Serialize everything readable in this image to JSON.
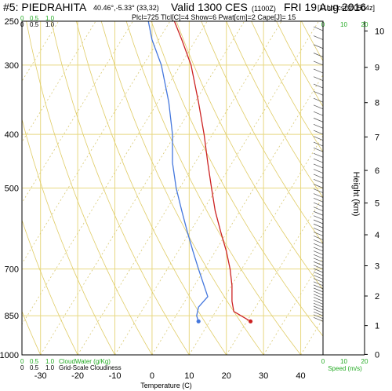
{
  "header": {
    "station": "#5: PIEDRAHITA",
    "coords": "40.46°,-5.33° (33,32)",
    "valid": "Valid 1300 CES",
    "zulu": "(1100Z)",
    "date": "FRI 19 Aug 2016",
    "forecast": "[11hrFcst@0504z]",
    "indices": "Plcl=725 Tlcl[C]=4 Show=6 Pwat[cm]=2 Cape[J]= 15"
  },
  "colors": {
    "temperature": "#cc2222",
    "dewpoint": "#4477dd",
    "grid": "#e8d882",
    "dry_adiabat": "#e0cc66",
    "cloudwater": "#22aa22",
    "wind": "#555555"
  },
  "labels": {
    "x_axis": "Temperature (C)",
    "y_axis_right": "Height (km)",
    "speed_axis": "Speed (m/s)",
    "cloudwater": "CloudWater (g/Kg)",
    "cloudiness": "Grid-Scale Cloudiness",
    "scale_0": "0",
    "scale_05": "0.5",
    "scale_1": "1.0"
  },
  "chart_data": {
    "type": "line",
    "xlabel": "Temperature (C)",
    "ylabel": "",
    "xlim": [
      -35,
      46
    ],
    "ylim": [
      1000,
      250
    ],
    "yscale": "log",
    "x_ticks": [
      -30,
      -20,
      -10,
      0,
      10,
      20,
      30,
      40
    ],
    "pressure_ticks": [
      250,
      300,
      400,
      500,
      700,
      850,
      1000
    ],
    "height_ticks": [
      0,
      1,
      2,
      3,
      4,
      5,
      6,
      7,
      8,
      9,
      10
    ],
    "speed_ticks": [
      0,
      10,
      20
    ],
    "series": [
      {
        "name": "temperature",
        "points": [
          [
            26.5,
            870
          ],
          [
            22,
            835
          ],
          [
            21.5,
            800
          ],
          [
            21.5,
            750
          ],
          [
            21,
            700
          ],
          [
            20,
            650
          ],
          [
            18.5,
            600
          ],
          [
            17,
            550
          ],
          [
            16,
            500
          ],
          [
            15,
            450
          ],
          [
            14,
            400
          ],
          [
            12.5,
            350
          ],
          [
            10.5,
            300
          ],
          [
            8,
            270
          ],
          [
            6,
            250
          ]
        ]
      },
      {
        "name": "dewpoint",
        "points": [
          [
            12.5,
            870
          ],
          [
            12,
            850
          ],
          [
            12.5,
            820
          ],
          [
            15,
            785
          ],
          [
            14,
            750
          ],
          [
            12.5,
            700
          ],
          [
            11,
            650
          ],
          [
            9.5,
            600
          ],
          [
            8,
            550
          ],
          [
            6.5,
            500
          ],
          [
            5.5,
            450
          ],
          [
            5.5,
            400
          ],
          [
            4.5,
            350
          ],
          [
            2.5,
            300
          ],
          [
            0,
            270
          ],
          [
            -1,
            250
          ]
        ]
      }
    ],
    "surface_markers": [
      [
        12.5,
        870
      ],
      [
        26.5,
        870
      ]
    ],
    "wind_barbs_pressure": [
      870,
      860,
      850,
      840,
      830,
      820,
      810,
      800,
      790,
      780,
      770,
      760,
      750,
      740,
      730,
      720,
      710,
      700,
      690,
      680,
      670,
      660,
      650,
      640,
      630,
      620,
      610,
      600,
      590,
      580,
      570,
      560,
      550,
      540,
      530,
      520,
      510,
      500,
      490,
      480,
      470,
      460,
      450,
      440,
      430,
      420,
      410,
      400,
      390,
      380,
      370,
      360,
      350,
      340,
      330,
      320,
      310,
      300,
      290,
      280,
      270,
      260
    ]
  }
}
